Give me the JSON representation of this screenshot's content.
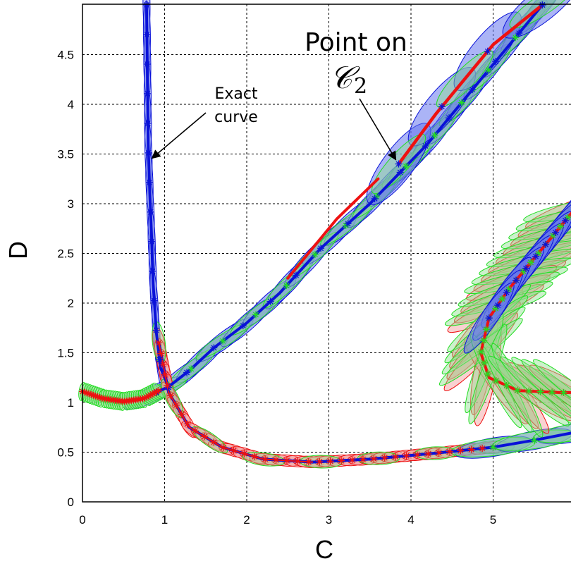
{
  "chart_data": {
    "type": "line",
    "xlabel": "C",
    "ylabel": "D",
    "xlim": [
      0,
      6
    ],
    "ylim": [
      0,
      5
    ],
    "xticks": [
      "0",
      "1",
      "2",
      "3",
      "4",
      "5"
    ],
    "yticks": [
      "0",
      "0.5",
      "1",
      "1.5",
      "2",
      "2.5",
      "3",
      "3.5",
      "4",
      "4.5"
    ],
    "grid": true,
    "colors": {
      "blue": "#0a12d8",
      "red": "#ee1111",
      "green": "#22dd22",
      "blue_fill": "#6677ee",
      "red_fill": "#f29a9a",
      "green_fill": "#8fe08f"
    },
    "series": [
      {
        "color": "blue",
        "x": [
          0.78,
          0.79,
          0.8,
          0.82,
          0.84,
          0.86,
          0.9,
          0.95,
          1.05
        ],
        "y": [
          5.0,
          4.35,
          3.6,
          3.1,
          2.7,
          2.2,
          1.7,
          1.35,
          1.15
        ]
      },
      {
        "color": "blue",
        "x": [
          0.9,
          1.05,
          1.3,
          1.6,
          2.0,
          2.4,
          2.9,
          3.5,
          4.2,
          5.0,
          5.6
        ],
        "y": [
          1.1,
          1.16,
          1.32,
          1.55,
          1.8,
          2.1,
          2.55,
          3.0,
          3.6,
          4.4,
          5.0
        ]
      },
      {
        "color": "red",
        "x": [
          0.93,
          1.05,
          1.3,
          1.7,
          2.2,
          2.8,
          3.5,
          4.3,
          5.0
        ],
        "y": [
          1.6,
          1.1,
          0.75,
          0.55,
          0.43,
          0.4,
          0.43,
          0.49,
          0.55
        ]
      },
      {
        "color": "blue",
        "x": [
          5.0,
          5.5,
          6.0
        ],
        "y": [
          0.55,
          0.62,
          0.7
        ]
      },
      {
        "color": "red",
        "x": [
          3.85,
          4.3,
          5.0,
          5.6
        ],
        "y": [
          3.4,
          3.9,
          4.6,
          5.0
        ]
      },
      {
        "color": "red",
        "x": [
          6.0,
          5.6,
          5.2,
          4.95,
          4.85,
          4.95,
          5.3,
          5.8,
          6.0
        ],
        "y": [
          2.95,
          2.55,
          2.15,
          1.85,
          1.5,
          1.25,
          1.12,
          1.1,
          1.1
        ]
      },
      {
        "color": "green",
        "x": [
          0.0,
          0.25,
          0.5,
          0.75,
          0.93
        ],
        "y": [
          1.11,
          1.04,
          1.01,
          1.04,
          1.12
        ]
      }
    ],
    "annotations": [
      {
        "text_lines": [
          "Exact",
          "curve"
        ],
        "points_to": [
          0.82,
          3.4
        ]
      },
      {
        "text_lines": [
          "Point on"
        ],
        "math": "𝒞",
        "subscript": "2",
        "points_to": [
          3.85,
          3.4
        ]
      }
    ]
  }
}
